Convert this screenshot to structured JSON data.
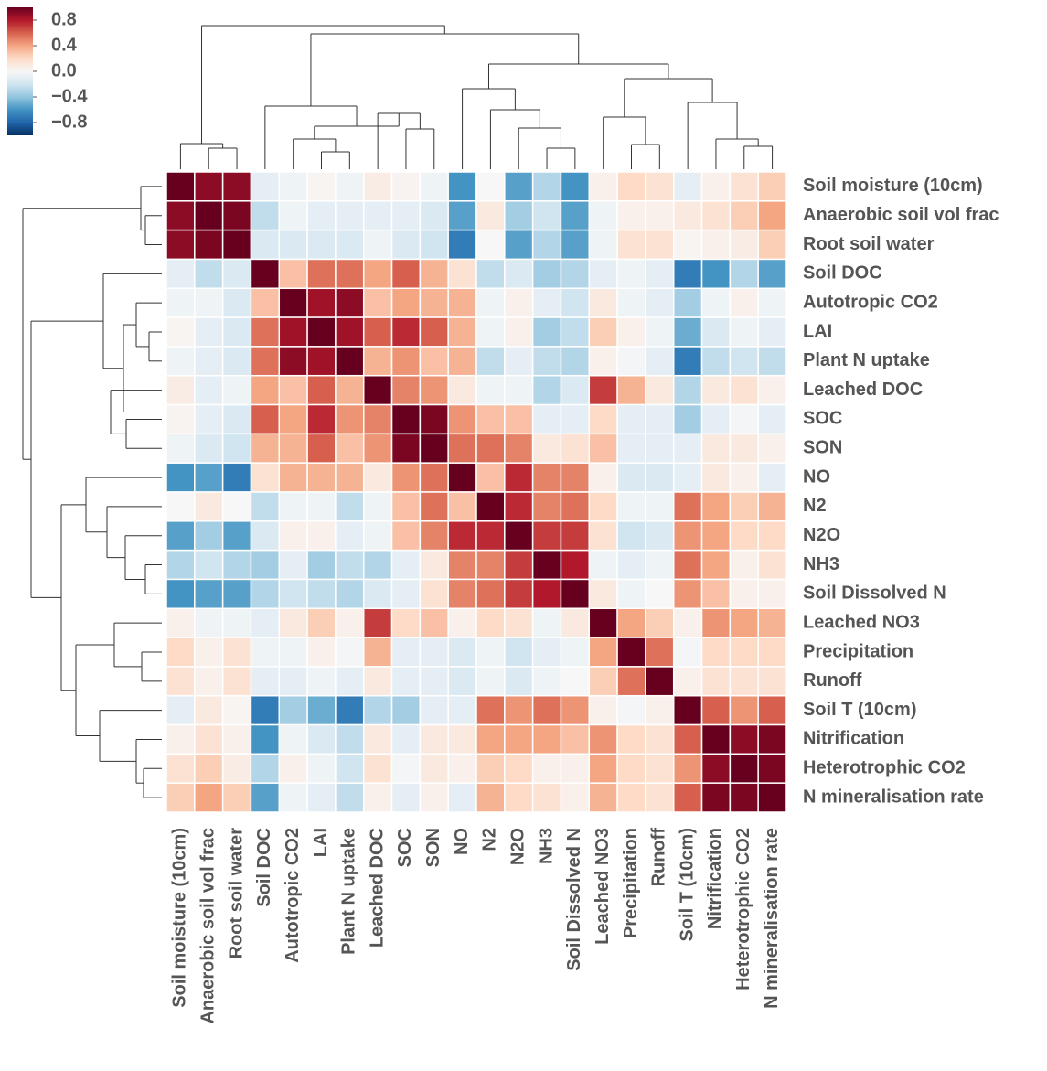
{
  "chart_data": {
    "type": "heatmap",
    "categories": [
      "Soil moisture (10cm)",
      "Anaerobic soil vol frac",
      "Root soil water",
      "Soil DOC",
      "Autotropic CO2",
      "LAI",
      "Plant N uptake",
      "Leached DOC",
      "SOC",
      "SON",
      "NO",
      "N2",
      "N2O",
      "NH3",
      "Soil Dissolved N",
      "Leached NO3",
      "Precipitation",
      "Runoff",
      "Soil T (10cm)",
      "Nitrification",
      "Heterotrophic CO2",
      "N mineralisation rate"
    ],
    "values": [
      [
        1,
        0.9,
        0.9,
        -0.1,
        -0.05,
        0.02,
        -0.05,
        0.08,
        0.03,
        -0.05,
        -0.6,
        0.0,
        -0.55,
        -0.3,
        -0.6,
        0.05,
        0.2,
        0.15,
        -0.1,
        0.05,
        0.15,
        0.25
      ],
      [
        0.9,
        1,
        0.95,
        -0.25,
        -0.05,
        -0.1,
        -0.1,
        -0.1,
        -0.1,
        -0.15,
        -0.55,
        0.1,
        -0.35,
        -0.2,
        -0.55,
        -0.05,
        0.05,
        0.05,
        0.1,
        0.15,
        0.25,
        0.4
      ],
      [
        0.9,
        0.95,
        1,
        -0.15,
        -0.15,
        -0.15,
        -0.15,
        -0.05,
        -0.15,
        -0.2,
        -0.7,
        0.0,
        -0.55,
        -0.3,
        -0.55,
        -0.05,
        0.15,
        0.15,
        0.02,
        0.05,
        0.08,
        0.25
      ],
      [
        -0.1,
        -0.25,
        -0.15,
        1,
        0.3,
        0.55,
        0.55,
        0.4,
        0.6,
        0.35,
        0.15,
        -0.25,
        -0.15,
        -0.35,
        -0.3,
        -0.1,
        -0.05,
        -0.1,
        -0.7,
        -0.6,
        -0.3,
        -0.55
      ],
      [
        -0.05,
        -0.05,
        -0.15,
        0.3,
        1,
        0.85,
        0.9,
        0.3,
        0.4,
        0.35,
        0.35,
        -0.05,
        0.05,
        -0.1,
        -0.2,
        0.1,
        -0.05,
        -0.1,
        -0.35,
        -0.05,
        0.05,
        -0.05
      ],
      [
        0.02,
        -0.1,
        -0.15,
        0.55,
        0.85,
        1,
        0.85,
        0.6,
        0.75,
        0.6,
        0.35,
        -0.05,
        0.05,
        -0.35,
        -0.25,
        0.25,
        0.05,
        -0.05,
        -0.5,
        -0.15,
        -0.05,
        -0.1
      ],
      [
        -0.05,
        -0.1,
        -0.15,
        0.55,
        0.9,
        0.85,
        1,
        0.35,
        0.45,
        0.3,
        0.35,
        -0.25,
        -0.1,
        -0.25,
        -0.3,
        0.05,
        -0.02,
        -0.1,
        -0.7,
        -0.25,
        -0.2,
        -0.25
      ],
      [
        0.08,
        -0.1,
        -0.05,
        0.4,
        0.3,
        0.6,
        0.35,
        1,
        0.5,
        0.45,
        0.1,
        -0.05,
        -0.05,
        -0.3,
        -0.15,
        0.7,
        0.35,
        0.1,
        -0.3,
        0.1,
        0.15,
        0.05
      ],
      [
        0.03,
        -0.1,
        -0.15,
        0.6,
        0.4,
        0.75,
        0.45,
        0.5,
        1,
        0.95,
        0.45,
        0.3,
        0.3,
        -0.1,
        -0.1,
        0.2,
        -0.1,
        -0.1,
        -0.35,
        -0.1,
        -0.02,
        -0.1
      ],
      [
        -0.05,
        -0.15,
        -0.2,
        0.35,
        0.35,
        0.6,
        0.3,
        0.45,
        0.95,
        1,
        0.55,
        0.55,
        0.5,
        0.1,
        0.15,
        0.3,
        -0.1,
        -0.1,
        -0.1,
        0.1,
        0.1,
        0.05
      ],
      [
        -0.6,
        -0.55,
        -0.7,
        0.15,
        0.35,
        0.35,
        0.35,
        0.1,
        0.45,
        0.55,
        1,
        0.3,
        0.75,
        0.5,
        0.5,
        0.05,
        -0.15,
        -0.15,
        -0.1,
        0.1,
        0.05,
        -0.1
      ],
      [
        0.0,
        0.1,
        0.0,
        -0.25,
        -0.05,
        -0.05,
        -0.25,
        -0.05,
        0.3,
        0.55,
        0.3,
        1,
        0.75,
        0.5,
        0.55,
        0.2,
        -0.05,
        -0.05,
        0.55,
        0.4,
        0.25,
        0.35
      ],
      [
        -0.55,
        -0.35,
        -0.55,
        -0.15,
        0.05,
        0.05,
        -0.1,
        -0.05,
        0.3,
        0.5,
        0.75,
        0.75,
        1,
        0.7,
        0.7,
        0.15,
        -0.2,
        -0.15,
        0.45,
        0.4,
        0.2,
        0.2
      ],
      [
        -0.3,
        -0.2,
        -0.3,
        -0.35,
        -0.1,
        -0.35,
        -0.25,
        -0.3,
        -0.1,
        0.1,
        0.5,
        0.5,
        0.7,
        1,
        0.8,
        -0.05,
        -0.1,
        -0.05,
        0.55,
        0.4,
        0.05,
        0.15
      ],
      [
        -0.6,
        -0.55,
        -0.55,
        -0.3,
        -0.2,
        -0.25,
        -0.3,
        -0.15,
        -0.1,
        0.15,
        0.5,
        0.55,
        0.7,
        0.8,
        1,
        0.1,
        -0.05,
        0.0,
        0.45,
        0.3,
        0.05,
        0.05
      ],
      [
        0.05,
        -0.05,
        -0.05,
        -0.1,
        0.1,
        0.25,
        0.05,
        0.7,
        0.2,
        0.3,
        0.05,
        0.2,
        0.15,
        -0.05,
        0.1,
        1,
        0.4,
        0.25,
        0.05,
        0.45,
        0.4,
        0.35
      ],
      [
        0.2,
        0.05,
        0.15,
        -0.05,
        -0.05,
        0.05,
        -0.02,
        0.35,
        -0.1,
        -0.1,
        -0.15,
        -0.05,
        -0.2,
        -0.1,
        -0.05,
        0.4,
        1,
        0.55,
        -0.02,
        0.2,
        0.2,
        0.2
      ],
      [
        0.15,
        0.05,
        0.15,
        -0.1,
        -0.1,
        -0.05,
        -0.1,
        0.1,
        -0.1,
        -0.1,
        -0.15,
        -0.05,
        -0.15,
        -0.05,
        0.0,
        0.25,
        0.55,
        1,
        0.05,
        0.15,
        0.15,
        0.15
      ],
      [
        -0.1,
        0.1,
        0.02,
        -0.7,
        -0.35,
        -0.5,
        -0.7,
        -0.3,
        -0.35,
        -0.1,
        -0.1,
        0.55,
        0.45,
        0.55,
        0.45,
        0.05,
        -0.02,
        0.05,
        1,
        0.6,
        0.45,
        0.6
      ],
      [
        0.05,
        0.15,
        0.05,
        -0.6,
        -0.05,
        -0.15,
        -0.25,
        0.1,
        -0.1,
        0.1,
        0.1,
        0.4,
        0.4,
        0.4,
        0.3,
        0.45,
        0.2,
        0.15,
        0.6,
        1,
        0.9,
        0.95
      ],
      [
        0.15,
        0.25,
        0.08,
        -0.3,
        0.05,
        -0.05,
        -0.2,
        0.15,
        -0.02,
        0.1,
        0.05,
        0.25,
        0.2,
        0.05,
        0.05,
        0.4,
        0.2,
        0.15,
        0.45,
        0.9,
        1,
        0.95
      ],
      [
        0.25,
        0.4,
        0.25,
        -0.55,
        -0.05,
        -0.1,
        -0.25,
        0.05,
        -0.1,
        0.05,
        -0.1,
        0.35,
        0.2,
        0.15,
        0.05,
        0.35,
        0.2,
        0.15,
        0.6,
        0.95,
        0.95,
        1
      ]
    ],
    "colormap": [
      "#053061",
      "#2166ac",
      "#4393c3",
      "#92c5de",
      "#d1e5f0",
      "#f7f7f7",
      "#fddbc7",
      "#f4a582",
      "#d6604d",
      "#b2182b",
      "#67001f"
    ],
    "zlim": [
      -1,
      1
    ],
    "zticks": [
      0.8,
      0.4,
      {
        "value": 0,
        "label": "0.0"
      },
      {
        "value": -0.4,
        "label": "−0.4"
      },
      {
        "value": -0.8,
        "label": "−0.8"
      }
    ]
  }
}
